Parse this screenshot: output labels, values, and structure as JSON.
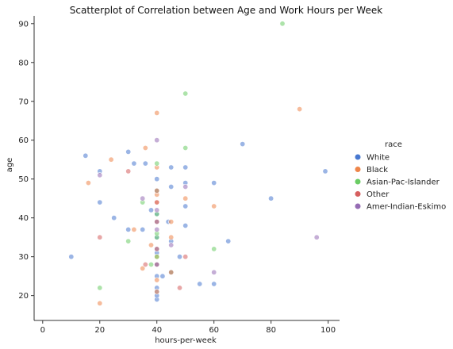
{
  "chart_data": {
    "type": "scatter",
    "title": "Scatterplot of Correlation between Age and Work Hours per Week",
    "xlabel": "hours-per-week",
    "ylabel": "age",
    "xlim": [
      -3,
      104
    ],
    "ylim": [
      13.6,
      92
    ],
    "xticks": [
      0,
      20,
      40,
      60,
      80,
      100
    ],
    "yticks": [
      20,
      30,
      40,
      50,
      60,
      70,
      80,
      90
    ],
    "grid": false,
    "legend": {
      "title": "race",
      "placement": "right"
    },
    "series": [
      {
        "name": "White",
        "color": "#4878d0",
        "x": [
          40,
          40,
          50,
          45,
          40,
          35,
          60,
          20,
          40,
          38,
          30,
          48,
          55,
          40,
          25,
          45,
          42,
          50,
          36,
          40,
          70,
          15,
          40,
          32,
          44,
          50,
          60,
          40,
          80,
          10,
          40,
          45,
          40,
          99,
          40,
          30,
          50,
          20,
          40,
          65
        ],
        "y": [
          39,
          50,
          38,
          53,
          28,
          37,
          49,
          52,
          31,
          42,
          37,
          30,
          23,
          32,
          40,
          34,
          25,
          43,
          54,
          35,
          59,
          56,
          19,
          54,
          39,
          49,
          23,
          20,
          45,
          30,
          22,
          48,
          21,
          52,
          25,
          57,
          53,
          44,
          41,
          34
        ]
      },
      {
        "name": "Black",
        "color": "#ee854a",
        "x": [
          40,
          40,
          35,
          40,
          20,
          32,
          40,
          50,
          16,
          45,
          38,
          40,
          24,
          40,
          60,
          36,
          40,
          45,
          40,
          90
        ],
        "y": [
          53,
          28,
          27,
          44,
          18,
          37,
          46,
          45,
          49,
          35,
          33,
          24,
          55,
          30,
          43,
          58,
          21,
          39,
          67,
          68
        ]
      },
      {
        "name": "Asian-Pac-Islander",
        "color": "#6acc64",
        "x": [
          40,
          60,
          45,
          40,
          50,
          40,
          20,
          38,
          40,
          35,
          40,
          30,
          84,
          40,
          50
        ],
        "y": [
          30,
          32,
          26,
          35,
          58,
          41,
          22,
          28,
          47,
          44,
          36,
          34,
          90,
          54,
          72
        ]
      },
      {
        "name": "Other",
        "color": "#d65f5f",
        "x": [
          40,
          45,
          30,
          40,
          48,
          40,
          20,
          50,
          36,
          40
        ],
        "y": [
          39,
          26,
          52,
          32,
          22,
          44,
          35,
          30,
          28,
          47
        ]
      },
      {
        "name": "Amer-Indian-Eskimo",
        "color": "#956cb4",
        "x": [
          40,
          50,
          45,
          40,
          60,
          35,
          40,
          20,
          96,
          40
        ],
        "y": [
          28,
          48,
          33,
          37,
          26,
          45,
          60,
          51,
          35,
          42
        ]
      }
    ]
  }
}
